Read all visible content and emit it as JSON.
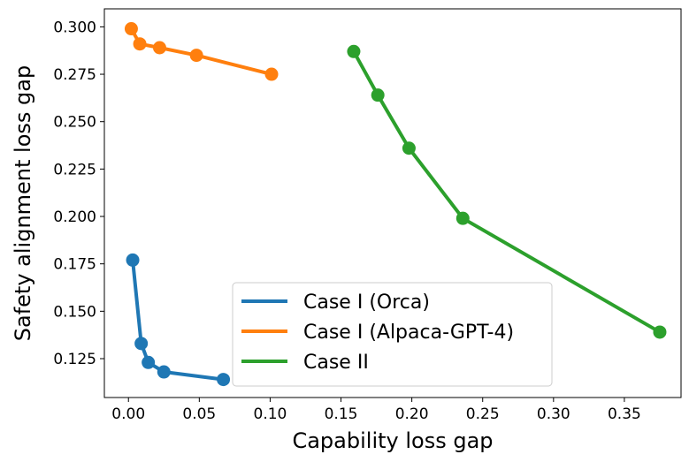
{
  "chart_data": {
    "type": "line",
    "title": "",
    "xlabel": "Capability loss gap",
    "ylabel": "Safety alignment loss gap",
    "xlim": [
      -0.017,
      0.39
    ],
    "ylim": [
      0.1045,
      0.3095
    ],
    "xticks": [
      0.0,
      0.05,
      0.1,
      0.15,
      0.2,
      0.25,
      0.3,
      0.35
    ],
    "xtick_labels": [
      "0.00",
      "0.05",
      "0.10",
      "0.15",
      "0.20",
      "0.25",
      "0.30",
      "0.35"
    ],
    "yticks": [
      0.125,
      0.15,
      0.175,
      0.2,
      0.225,
      0.25,
      0.275,
      0.3
    ],
    "ytick_labels": [
      "0.125",
      "0.150",
      "0.175",
      "0.200",
      "0.225",
      "0.250",
      "0.275",
      "0.300"
    ],
    "grid": false,
    "legend_position": "lower-center",
    "series": [
      {
        "name": "Case I (Orca)",
        "color": "#1f77b4",
        "x": [
          0.003,
          0.009,
          0.014,
          0.025,
          0.067
        ],
        "y": [
          0.177,
          0.133,
          0.123,
          0.118,
          0.114
        ]
      },
      {
        "name": "Case I (Alpaca-GPT-4)",
        "color": "#ff7f0e",
        "x": [
          0.002,
          0.008,
          0.022,
          0.048,
          0.101
        ],
        "y": [
          0.299,
          0.291,
          0.289,
          0.285,
          0.275
        ]
      },
      {
        "name": "Case II",
        "color": "#2ca02c",
        "x": [
          0.159,
          0.176,
          0.198,
          0.236,
          0.375
        ],
        "y": [
          0.287,
          0.264,
          0.236,
          0.199,
          0.139
        ]
      }
    ]
  }
}
